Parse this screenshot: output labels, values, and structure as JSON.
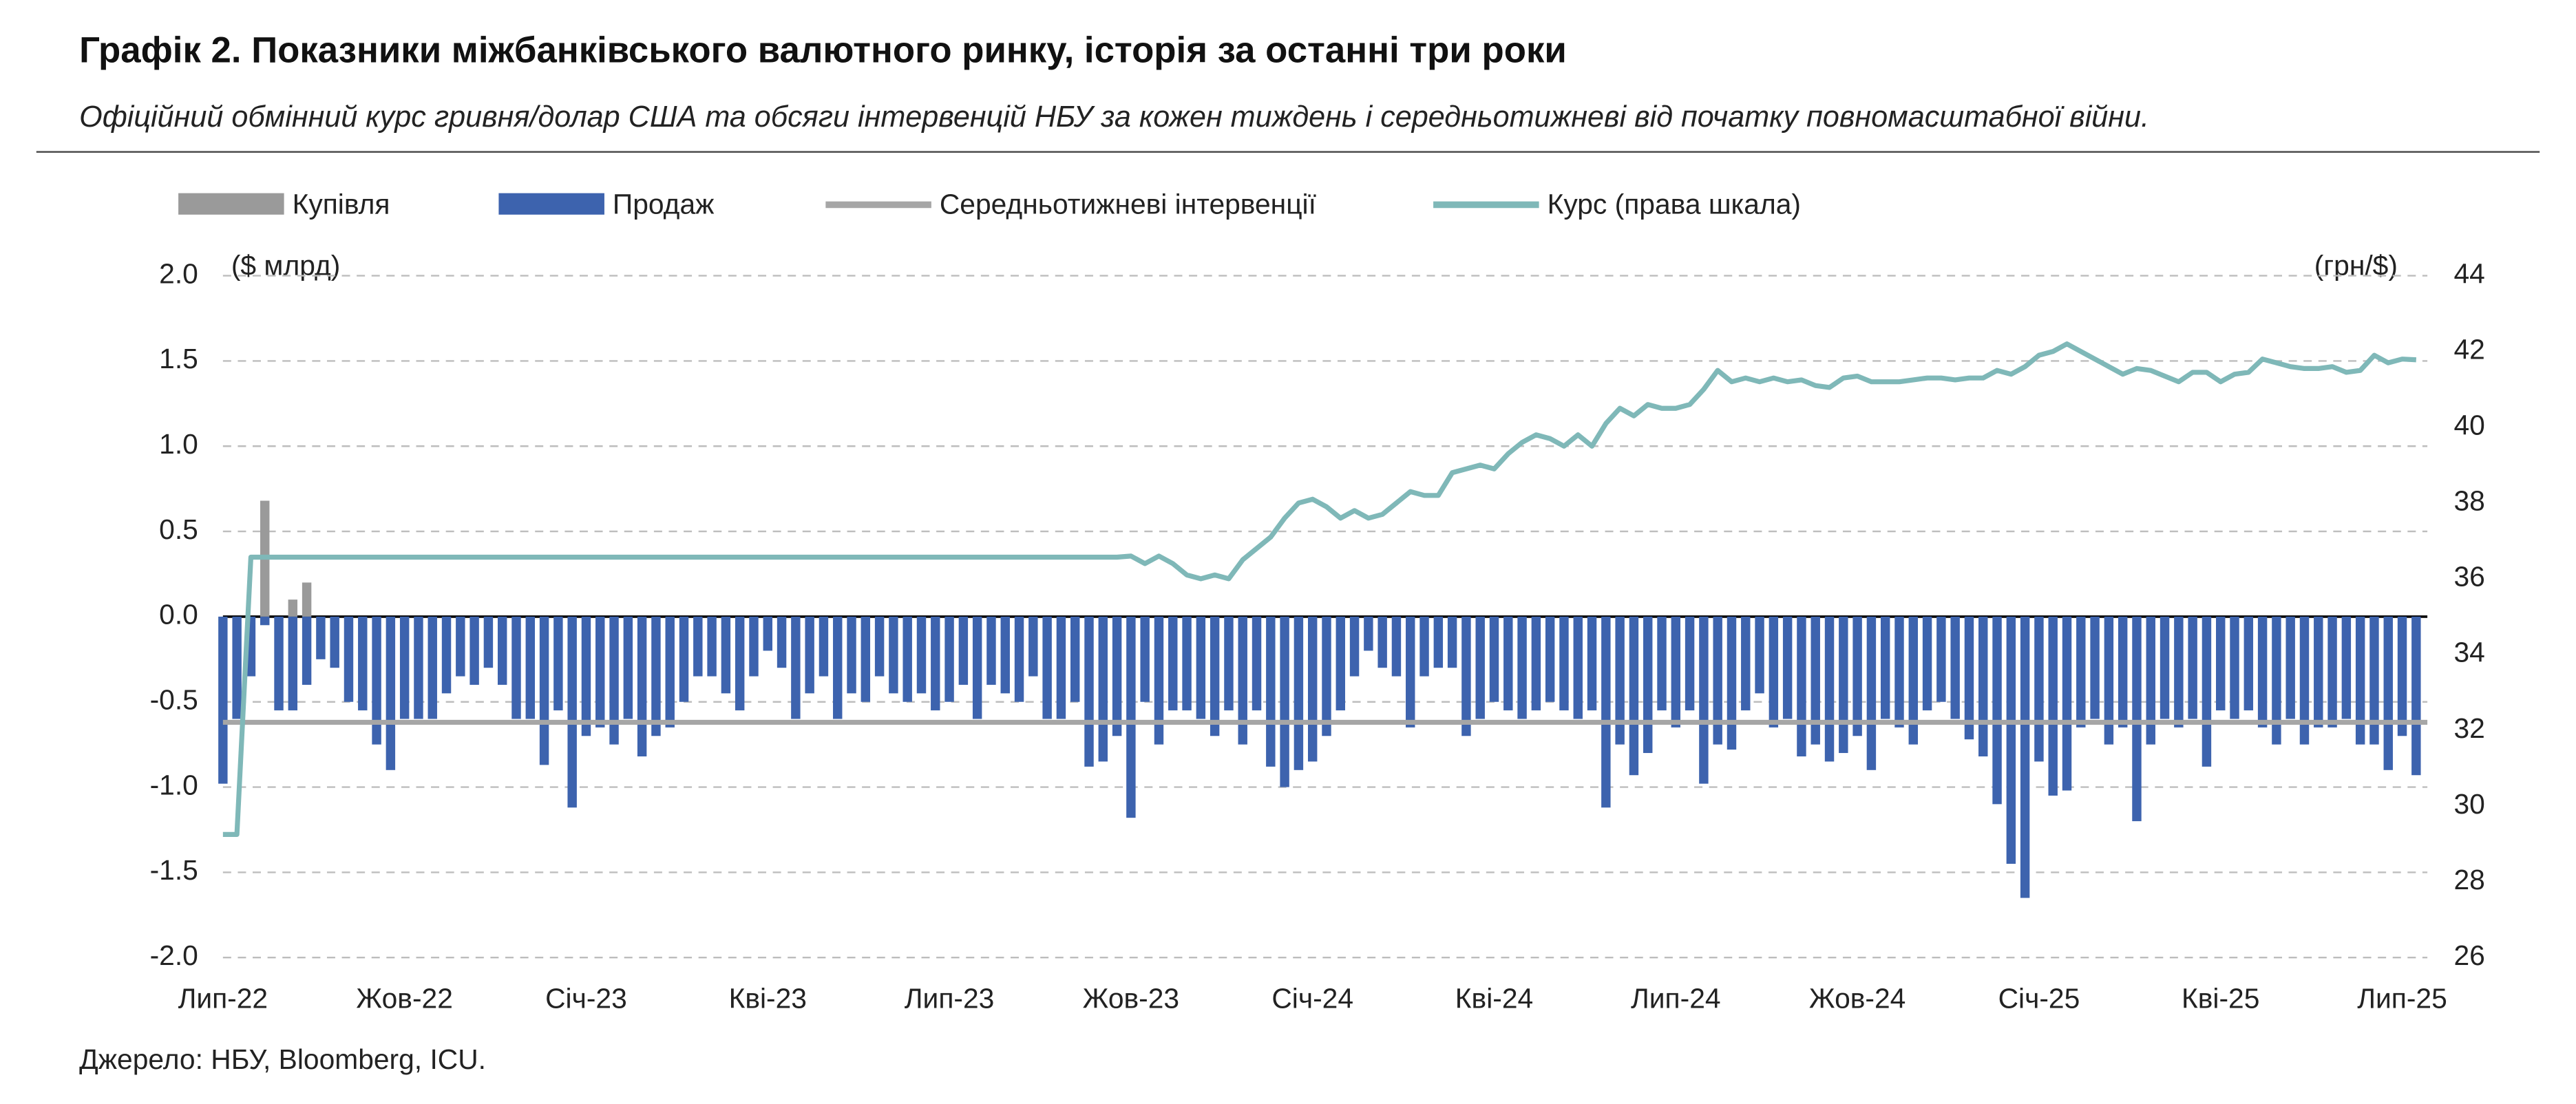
{
  "chart_data": {
    "type": "bar",
    "title": "Графік 2. Показники міжбанківського валютного ринку, історія за останні три роки",
    "subtitle": "Офіційний обмінний курс гривня/долар США та обсяги інтервенцій НБУ за кожен тиждень і середньотижневі від початку повномасштабної війни.",
    "source": "Джерело: НБУ, Bloomberg, ICU.",
    "ylabel": "($ млрд)",
    "y2label": "(грн/$)",
    "grid": true,
    "categories": [
      "Лип-22",
      null,
      null,
      null,
      null,
      null,
      null,
      null,
      null,
      null,
      null,
      null,
      null,
      "Жов-22",
      null,
      null,
      null,
      null,
      null,
      null,
      null,
      null,
      null,
      null,
      null,
      null,
      "Січ-23",
      null,
      null,
      null,
      null,
      null,
      null,
      null,
      null,
      null,
      null,
      null,
      null,
      "Кві-23",
      null,
      null,
      null,
      null,
      null,
      null,
      null,
      null,
      null,
      null,
      null,
      null,
      "Лип-23",
      null,
      null,
      null,
      null,
      null,
      null,
      null,
      null,
      null,
      null,
      null,
      null,
      "Жов-23",
      null,
      null,
      null,
      null,
      null,
      null,
      null,
      null,
      null,
      null,
      null,
      null,
      "Січ-24",
      null,
      null,
      null,
      null,
      null,
      null,
      null,
      null,
      null,
      null,
      null,
      null,
      "Кві-24",
      null,
      null,
      null,
      null,
      null,
      null,
      null,
      null,
      null,
      null,
      null,
      null,
      "Лип-24",
      null,
      null,
      null,
      null,
      null,
      null,
      null,
      null,
      null,
      null,
      null,
      null,
      "Жов-24",
      null,
      null,
      null,
      null,
      null,
      null,
      null,
      null,
      null,
      null,
      null,
      null,
      "Січ-25",
      null,
      null,
      null,
      null,
      null,
      null,
      null,
      null,
      null,
      null,
      null,
      null,
      "Кві-25",
      null,
      null,
      null,
      null,
      null,
      null,
      null,
      null,
      null,
      null,
      null,
      null,
      "Лип-25",
      null
    ],
    "ylim": [
      -2,
      2
    ],
    "yticks": [
      {
        "value": 2,
        "label": "2.0"
      },
      1.5,
      {
        "value": 1,
        "label": "1.0"
      },
      0.5,
      {
        "value": 0,
        "label": "0.0"
      },
      -0.5,
      {
        "value": -1,
        "label": "-1.0"
      },
      -1.5,
      {
        "value": -2,
        "label": "-2.0"
      }
    ],
    "y2lim": [
      26,
      44
    ],
    "y2ticks": [
      44,
      42,
      40,
      38,
      36,
      34,
      32,
      30,
      28,
      26
    ],
    "series": [
      {
        "name": "Купівля",
        "type": "bar",
        "color": "#9a9a9a",
        "values": [
          0,
          0,
          0,
          0.68,
          0,
          0.1,
          0.2,
          0,
          0,
          0,
          0,
          0,
          0,
          0,
          0,
          0,
          0,
          0,
          0,
          0,
          0,
          0,
          0,
          0,
          0,
          0,
          0,
          0,
          0,
          0,
          0,
          0,
          0,
          0,
          0,
          0,
          0,
          0,
          0,
          0,
          0,
          0,
          0,
          0,
          0,
          0,
          0,
          0,
          0,
          0,
          0,
          0,
          0,
          0,
          0,
          0,
          0,
          0,
          0,
          0,
          0,
          0,
          0,
          0,
          0,
          0,
          0,
          0,
          0,
          0,
          0,
          0,
          0,
          0,
          0,
          0,
          0,
          0,
          0,
          0,
          0,
          0,
          0,
          0,
          0,
          0,
          0,
          0,
          0,
          0,
          0,
          0,
          0,
          0,
          0,
          0,
          0,
          0,
          0,
          0,
          0,
          0,
          0,
          0,
          0,
          0,
          0,
          0,
          0,
          0,
          0,
          0,
          0,
          0,
          0,
          0,
          0,
          0,
          0,
          0,
          0,
          0,
          0,
          0,
          0,
          0,
          0,
          0,
          0,
          0,
          0,
          0,
          0,
          0,
          0,
          0,
          0,
          0,
          0,
          0,
          0,
          0,
          0,
          0,
          0,
          0,
          0,
          0,
          0,
          0,
          0,
          0,
          0,
          0,
          0,
          0,
          0,
          0
        ]
      },
      {
        "name": "Продаж",
        "type": "bar",
        "color": "#3d63ae",
        "values": [
          -0.98,
          -0.6,
          -0.35,
          -0.05,
          -0.55,
          -0.55,
          -0.4,
          -0.25,
          -0.3,
          -0.5,
          -0.55,
          -0.75,
          -0.9,
          -0.6,
          -0.6,
          -0.6,
          -0.45,
          -0.35,
          -0.4,
          -0.3,
          -0.4,
          -0.6,
          -0.6,
          -0.87,
          -0.55,
          -1.12,
          -0.7,
          -0.65,
          -0.75,
          -0.6,
          -0.82,
          -0.7,
          -0.65,
          -0.5,
          -0.35,
          -0.35,
          -0.45,
          -0.55,
          -0.35,
          -0.2,
          -0.3,
          -0.6,
          -0.45,
          -0.35,
          -0.6,
          -0.45,
          -0.5,
          -0.35,
          -0.45,
          -0.5,
          -0.45,
          -0.55,
          -0.5,
          -0.4,
          -0.6,
          -0.4,
          -0.45,
          -0.5,
          -0.35,
          -0.6,
          -0.6,
          -0.5,
          -0.88,
          -0.85,
          -0.7,
          -1.18,
          -0.5,
          -0.75,
          -0.55,
          -0.55,
          -0.6,
          -0.7,
          -0.55,
          -0.75,
          -0.55,
          -0.88,
          -1.0,
          -0.9,
          -0.85,
          -0.7,
          -0.55,
          -0.35,
          -0.2,
          -0.3,
          -0.35,
          -0.65,
          -0.35,
          -0.3,
          -0.3,
          -0.7,
          -0.6,
          -0.5,
          -0.55,
          -0.6,
          -0.55,
          -0.5,
          -0.55,
          -0.6,
          -0.55,
          -1.12,
          -0.75,
          -0.93,
          -0.8,
          -0.55,
          -0.65,
          -0.55,
          -0.98,
          -0.75,
          -0.78,
          -0.55,
          -0.45,
          -0.65,
          -0.6,
          -0.82,
          -0.75,
          -0.85,
          -0.8,
          -0.7,
          -0.9,
          -0.6,
          -0.65,
          -0.75,
          -0.55,
          -0.5,
          -0.6,
          -0.72,
          -0.82,
          -1.1,
          -1.45,
          -1.65,
          -0.85,
          -1.05,
          -1.02,
          -0.65,
          -0.6,
          -0.75,
          -0.65,
          -1.2,
          -0.75,
          -0.6,
          -0.65,
          -0.6,
          -0.88,
          -0.55,
          -0.6,
          -0.55,
          -0.65,
          -0.75,
          -0.6,
          -0.75,
          -0.65,
          -0.65,
          -0.6,
          -0.75,
          -0.75,
          -0.9,
          -0.7,
          -0.93
        ]
      },
      {
        "name": "Середньотижневі інтервенції",
        "type": "hline",
        "color": "#a6a6a6",
        "value": -0.62
      },
      {
        "name": "Курс (права шкала)",
        "type": "line",
        "axis": "y2",
        "color": "#7fb8b8",
        "values": [
          29.25,
          29.25,
          36.57,
          36.57,
          36.57,
          36.57,
          36.57,
          36.57,
          36.57,
          36.57,
          36.57,
          36.57,
          36.57,
          36.57,
          36.57,
          36.57,
          36.57,
          36.57,
          36.57,
          36.57,
          36.57,
          36.57,
          36.57,
          36.57,
          36.57,
          36.57,
          36.57,
          36.57,
          36.57,
          36.57,
          36.57,
          36.57,
          36.57,
          36.57,
          36.57,
          36.57,
          36.57,
          36.57,
          36.57,
          36.57,
          36.57,
          36.57,
          36.57,
          36.57,
          36.57,
          36.57,
          36.57,
          36.57,
          36.57,
          36.57,
          36.57,
          36.57,
          36.57,
          36.57,
          36.57,
          36.57,
          36.57,
          36.57,
          36.57,
          36.57,
          36.57,
          36.57,
          36.57,
          36.57,
          36.57,
          36.6,
          36.4,
          36.6,
          36.4,
          36.1,
          36.0,
          36.1,
          36.0,
          36.5,
          36.8,
          37.1,
          37.6,
          38.0,
          38.1,
          37.9,
          37.6,
          37.8,
          37.6,
          37.7,
          38.0,
          38.3,
          38.2,
          38.2,
          38.8,
          38.9,
          39.0,
          38.9,
          39.3,
          39.6,
          39.8,
          39.7,
          39.5,
          39.8,
          39.5,
          40.1,
          40.5,
          40.3,
          40.6,
          40.5,
          40.5,
          40.6,
          41.0,
          41.5,
          41.2,
          41.3,
          41.2,
          41.3,
          41.2,
          41.25,
          41.1,
          41.05,
          41.3,
          41.35,
          41.2,
          41.2,
          41.2,
          41.25,
          41.3,
          41.3,
          41.25,
          41.3,
          41.3,
          41.5,
          41.4,
          41.6,
          41.9,
          42.0,
          42.2,
          42.0,
          41.8,
          41.6,
          41.4,
          41.55,
          41.5,
          41.35,
          41.2,
          41.45,
          41.45,
          41.2,
          41.4,
          41.45,
          41.8,
          41.7,
          41.6,
          41.55,
          41.55,
          41.6,
          41.45,
          41.5,
          41.9,
          41.7,
          41.8,
          41.78
        ]
      }
    ]
  }
}
